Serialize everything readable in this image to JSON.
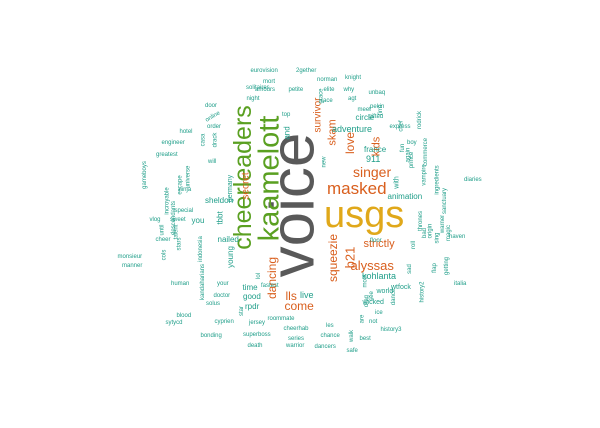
{
  "colors": {
    "gray": "#595959",
    "gold": "#e0a81a",
    "green": "#5aa021",
    "orange": "#d95f1e",
    "teal": "#1f9e89",
    "blue": "#2f6fa8"
  },
  "words": [
    {
      "text": "voice",
      "color": "gray"
    },
    {
      "text": "usgs",
      "color": "gold"
    },
    {
      "text": "kaamelott",
      "color": "green"
    },
    {
      "text": "cheerleaders",
      "color": "green"
    },
    {
      "text": "masked",
      "color": "orange"
    },
    {
      "text": "singer",
      "color": "orange"
    },
    {
      "text": "alyssas",
      "color": "orange"
    },
    {
      "text": "strictly",
      "color": "orange"
    },
    {
      "text": "squeezie",
      "color": "orange"
    },
    {
      "text": "b21",
      "color": "orange"
    },
    {
      "text": "love",
      "color": "orange"
    },
    {
      "text": "kids",
      "color": "orange"
    },
    {
      "text": "skam",
      "color": "orange"
    },
    {
      "text": "survivor",
      "color": "orange"
    },
    {
      "text": "lls",
      "color": "orange"
    },
    {
      "text": "dancing",
      "color": "orange"
    },
    {
      "text": "secret",
      "color": "orange"
    },
    {
      "text": "come",
      "color": "orange"
    },
    {
      "text": "live",
      "color": "teal"
    },
    {
      "text": "911",
      "color": "teal"
    },
    {
      "text": "france",
      "color": "teal"
    },
    {
      "text": "circle",
      "color": "teal"
    },
    {
      "text": "adventure",
      "color": "teal"
    },
    {
      "text": "kohlanta",
      "color": "teal"
    },
    {
      "text": "with",
      "color": "teal"
    },
    {
      "text": "animation",
      "color": "teal"
    },
    {
      "text": "sheldon",
      "color": "teal"
    },
    {
      "text": "tbbt",
      "color": "teal"
    },
    {
      "text": "nailed",
      "color": "teal"
    },
    {
      "text": "germany",
      "color": "teal"
    },
    {
      "text": "young",
      "color": "teal"
    },
    {
      "text": "you",
      "color": "teal"
    },
    {
      "text": "time",
      "color": "teal"
    },
    {
      "text": "good",
      "color": "teal"
    },
    {
      "text": "rpdr",
      "color": "teal"
    },
    {
      "text": "and",
      "color": "teal"
    },
    {
      "text": "world",
      "color": "teal"
    },
    {
      "text": "wicked",
      "color": "teal"
    },
    {
      "text": "wtfock",
      "color": "teal"
    },
    {
      "text": "eurovision",
      "color": "teal"
    },
    {
      "text": "2gether",
      "color": "teal"
    },
    {
      "text": "mort",
      "color": "teal"
    },
    {
      "text": "norman",
      "color": "teal"
    },
    {
      "text": "knight",
      "color": "teal"
    },
    {
      "text": "solitaires",
      "color": "teal"
    },
    {
      "text": "elite",
      "color": "teal"
    },
    {
      "text": "amours",
      "color": "teal"
    },
    {
      "text": "petite",
      "color": "teal"
    },
    {
      "text": "why",
      "color": "teal"
    },
    {
      "text": "night",
      "color": "teal"
    },
    {
      "text": "race",
      "color": "teal"
    },
    {
      "text": "agt",
      "color": "teal"
    },
    {
      "text": "unbaq",
      "color": "teal"
    },
    {
      "text": "pekin",
      "color": "teal"
    },
    {
      "text": "gifted",
      "color": "teal"
    },
    {
      "text": "meet",
      "color": "teal"
    },
    {
      "text": "express",
      "color": "teal"
    },
    {
      "text": "door",
      "color": "teal"
    },
    {
      "text": "top",
      "color": "teal"
    },
    {
      "text": "online",
      "color": "teal"
    },
    {
      "text": "order",
      "color": "teal"
    },
    {
      "text": "hotel",
      "color": "teal"
    },
    {
      "text": "engineer",
      "color": "teal"
    },
    {
      "text": "greatest",
      "color": "teal"
    },
    {
      "text": "casa",
      "color": "teal"
    },
    {
      "text": "drack",
      "color": "teal"
    },
    {
      "text": "will",
      "color": "teal"
    },
    {
      "text": "gameboys",
      "color": "teal"
    },
    {
      "text": "ninja",
      "color": "teal"
    },
    {
      "text": "special",
      "color": "teal"
    },
    {
      "text": "vlog",
      "color": "teal"
    },
    {
      "text": "sweet",
      "color": "teal"
    },
    {
      "text": "cheer",
      "color": "teal"
    },
    {
      "text": "monsieur",
      "color": "teal"
    },
    {
      "text": "manner",
      "color": "teal"
    },
    {
      "text": "cols",
      "color": "teal"
    },
    {
      "text": "human",
      "color": "teal"
    },
    {
      "text": "doctor",
      "color": "teal"
    },
    {
      "text": "solus",
      "color": "teal"
    },
    {
      "text": "your",
      "color": "teal"
    },
    {
      "text": "fastest",
      "color": "teal"
    },
    {
      "text": "blood",
      "color": "teal"
    },
    {
      "text": "sytycd",
      "color": "teal"
    },
    {
      "text": "cyprien",
      "color": "teal"
    },
    {
      "text": "jersey",
      "color": "teal"
    },
    {
      "text": "roommate",
      "color": "teal"
    },
    {
      "text": "cheerhab",
      "color": "teal"
    },
    {
      "text": "les",
      "color": "teal"
    },
    {
      "text": "bonding",
      "color": "teal"
    },
    {
      "text": "superboss",
      "color": "teal"
    },
    {
      "text": "series",
      "color": "teal"
    },
    {
      "text": "chance",
      "color": "teal"
    },
    {
      "text": "death",
      "color": "teal"
    },
    {
      "text": "warrior",
      "color": "teal"
    },
    {
      "text": "dancers",
      "color": "teal"
    },
    {
      "text": "safe",
      "color": "teal"
    },
    {
      "text": "best",
      "color": "teal"
    },
    {
      "text": "history3",
      "color": "teal"
    },
    {
      "text": "dance",
      "color": "teal"
    },
    {
      "text": "not",
      "color": "teal"
    },
    {
      "text": "ice",
      "color": "teal"
    },
    {
      "text": "floor",
      "color": "teal"
    },
    {
      "text": "diaries",
      "color": "teal"
    },
    {
      "text": "haven",
      "color": "teal"
    },
    {
      "text": "italia",
      "color": "teal"
    },
    {
      "text": "magic",
      "color": "teal"
    },
    {
      "text": "sanctuary",
      "color": "teal"
    },
    {
      "text": "boy",
      "color": "teal"
    },
    {
      "text": "rodrick",
      "color": "teal"
    },
    {
      "text": "vampire",
      "color": "teal"
    },
    {
      "text": "ingredients",
      "color": "teal"
    },
    {
      "text": "prince",
      "color": "teal"
    },
    {
      "text": "commerce",
      "color": "teal"
    },
    {
      "text": "again",
      "color": "teal"
    },
    {
      "text": "fun",
      "color": "teal"
    },
    {
      "text": "chef",
      "color": "teal"
    },
    {
      "text": "new",
      "color": "teal"
    },
    {
      "text": "grace",
      "color": "teal"
    },
    {
      "text": "firm",
      "color": "teal"
    },
    {
      "text": "sad",
      "color": "teal"
    },
    {
      "text": "bad",
      "color": "teal"
    },
    {
      "text": "flap",
      "color": "teal"
    },
    {
      "text": "history2",
      "color": "teal"
    },
    {
      "text": "getting",
      "color": "teal"
    },
    {
      "text": "universe",
      "color": "teal"
    },
    {
      "text": "escape",
      "color": "teal"
    },
    {
      "text": "incroyable",
      "color": "teal"
    },
    {
      "text": "descendants",
      "color": "teal"
    },
    {
      "text": "talent",
      "color": "teal"
    },
    {
      "text": "indonesia",
      "color": "teal"
    },
    {
      "text": "until",
      "color": "teal"
    },
    {
      "text": "kandaharians",
      "color": "teal"
    },
    {
      "text": "stars",
      "color": "teal"
    },
    {
      "text": "star",
      "color": "teal"
    },
    {
      "text": "walk",
      "color": "teal"
    },
    {
      "text": "are",
      "color": "teal"
    },
    {
      "text": "drag",
      "color": "teal"
    },
    {
      "text": "see",
      "color": "teal"
    },
    {
      "text": "most",
      "color": "teal"
    },
    {
      "text": "lol",
      "color": "teal"
    },
    {
      "text": "thrones",
      "color": "teal"
    },
    {
      "text": "origin",
      "color": "teal"
    },
    {
      "text": "roll",
      "color": "teal"
    },
    {
      "text": "sing",
      "color": "teal"
    },
    {
      "text": "warner",
      "color": "teal"
    }
  ]
}
